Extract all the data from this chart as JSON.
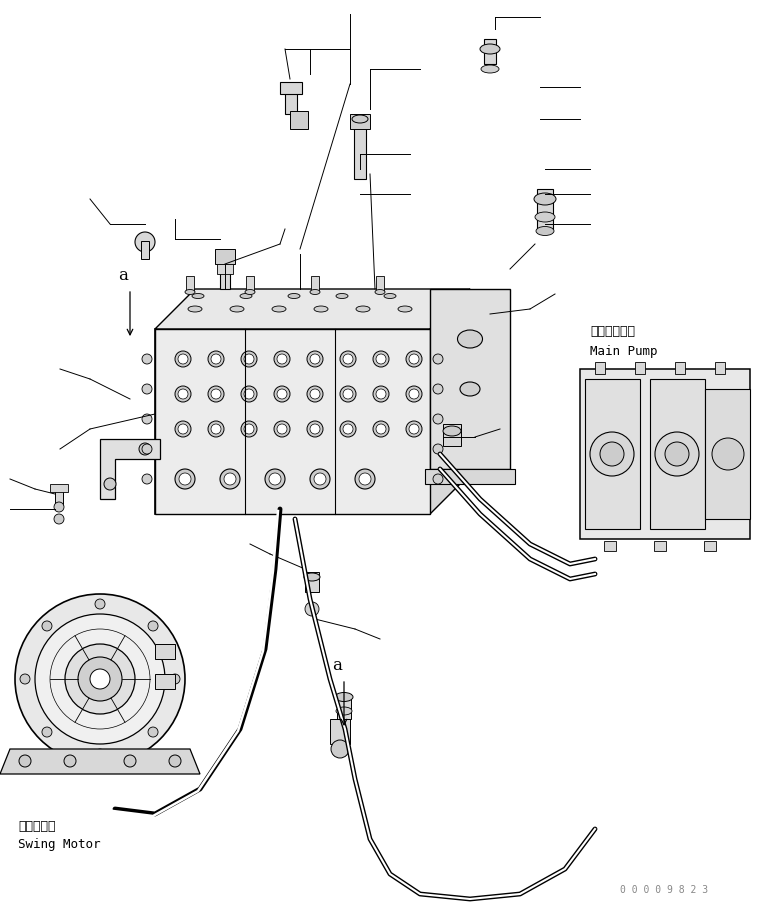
{
  "bg_color": "#ffffff",
  "line_color": "#000000",
  "fig_width": 7.6,
  "fig_height": 9.03,
  "dpi": 100,
  "watermark": "0 0 0 0 9 8 2 3",
  "label_main_pump_jp": "メインポンプ",
  "label_main_pump_en": "Main Pump",
  "label_swing_motor_jp": "旋回モータ",
  "label_swing_motor_en": "Swing Motor",
  "label_a1": "a",
  "label_a2": "a"
}
